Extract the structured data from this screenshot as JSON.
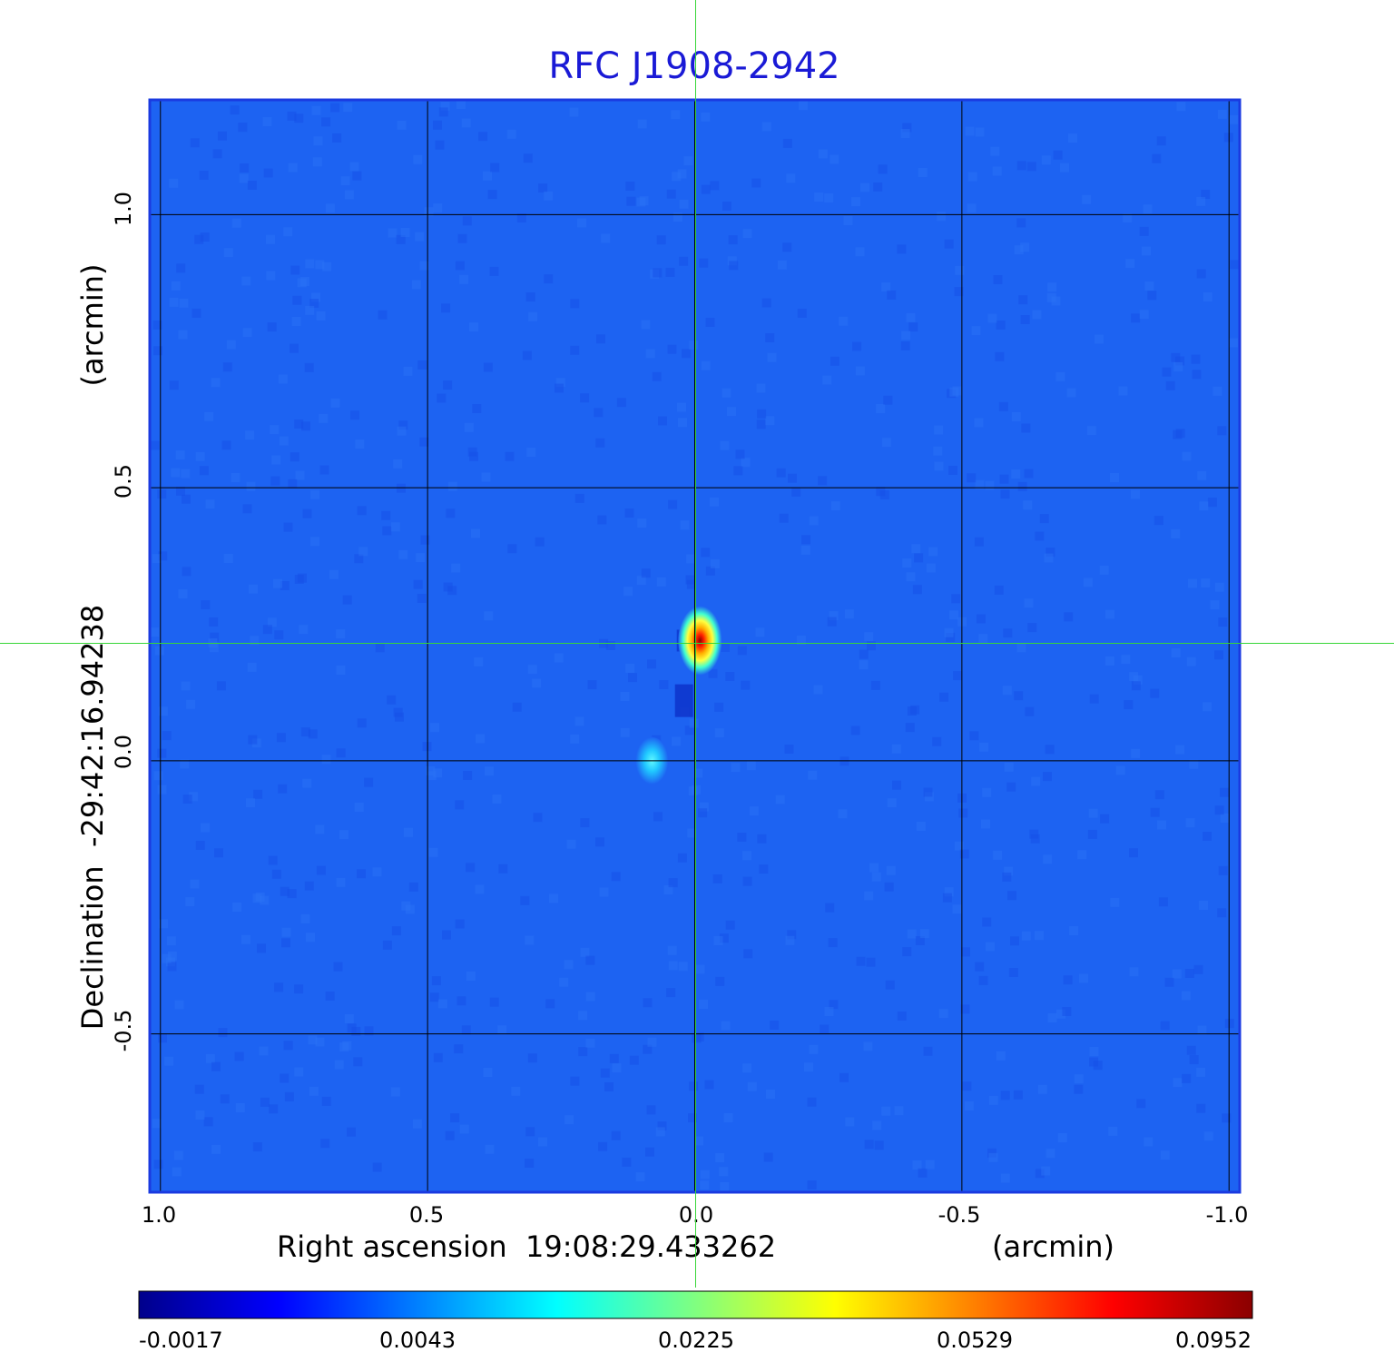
{
  "chart_data": {
    "type": "heatmap",
    "title": "RFC J1908-2942",
    "xlabel": "Right ascension  19:08:29.433262",
    "xunit": "(arcmin)",
    "ylabel": "Declination  -29:42:16.94238",
    "yunit": "(arcmin)",
    "xlim": [
      1.02,
      -1.02
    ],
    "ylim": [
      -0.79,
      1.21
    ],
    "x_ticks": [
      {
        "value": 1.0,
        "label": "1.0"
      },
      {
        "value": 0.5,
        "label": "0.5"
      },
      {
        "value": 0.0,
        "label": "0.0"
      },
      {
        "value": -0.5,
        "label": "-0.5"
      },
      {
        "value": -1.0,
        "label": "-1.0"
      }
    ],
    "y_ticks": [
      {
        "value": 1.0,
        "label": "1.0"
      },
      {
        "value": 0.5,
        "label": "0.5"
      },
      {
        "value": 0.0,
        "label": "0.0"
      },
      {
        "value": -0.5,
        "label": "-0.5"
      }
    ],
    "grid": true,
    "crosshair": {
      "x": -0.005,
      "y": 0.215
    },
    "sources": [
      {
        "x": -0.01,
        "y": 0.22,
        "peak": 0.0952
      },
      {
        "x": 0.08,
        "y": 0.0,
        "peak": 0.012
      }
    ],
    "background_level": 0.0,
    "colormap": [
      "#00008b",
      "#0000ff",
      "#0080ff",
      "#00ffff",
      "#80ff80",
      "#ffff00",
      "#ff8000",
      "#ff0000",
      "#8b0000"
    ],
    "colorbar": {
      "range": [
        -0.0017,
        0.0952
      ],
      "ticks": [
        "-0.0017",
        "0.0043",
        "0.0225",
        "0.0529",
        "0.0952"
      ]
    }
  }
}
